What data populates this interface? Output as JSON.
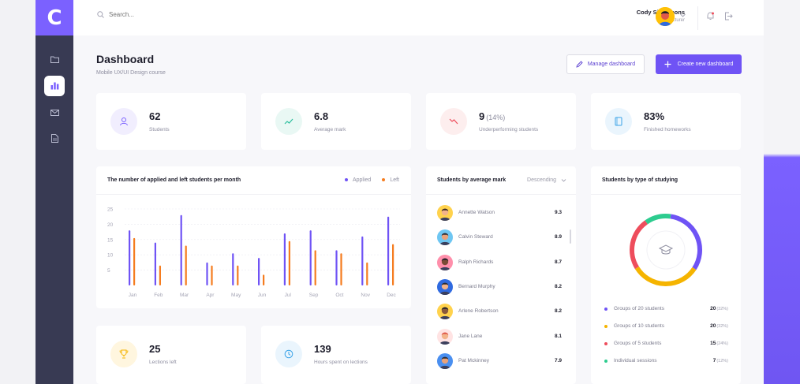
{
  "app": {
    "logo_letter": "C",
    "brand_color": "#7b61ff"
  },
  "sidebar": {
    "items": [
      {
        "icon": "folder-icon",
        "active": false
      },
      {
        "icon": "bar-chart-icon",
        "active": true
      },
      {
        "icon": "mail-icon",
        "active": false
      },
      {
        "icon": "document-icon",
        "active": false
      }
    ]
  },
  "topbar": {
    "search_placeholder": "Search...",
    "user_name": "Cody Simmmons",
    "user_role": "Lecturer"
  },
  "header": {
    "title": "Dashboard",
    "subtitle": "Mobile UX/UI Design course",
    "manage_label": "Manage dashboard",
    "create_label": "Create new dashboard"
  },
  "stats": [
    {
      "value": "62",
      "pct": "",
      "label": "Students",
      "icon": "user-icon",
      "color": "#7b61ff",
      "bg": "#f1eefe"
    },
    {
      "value": "6.8",
      "pct": "",
      "label": "Average mark",
      "icon": "trend-up-icon",
      "color": "#2dbf9e",
      "bg": "#e9f8f4"
    },
    {
      "value": "9",
      "pct": "(14%)",
      "label": "Underperforming students",
      "icon": "trend-down-icon",
      "color": "#ee4d5c",
      "bg": "#fdeeee"
    },
    {
      "value": "83%",
      "pct": "",
      "label": "Finished homeworks",
      "icon": "book-icon",
      "color": "#3aa3e8",
      "bg": "#eaf5fd"
    }
  ],
  "bottom_stats": [
    {
      "value": "25",
      "label": "Lections left",
      "icon": "trophy-icon",
      "color": "#f5b400",
      "bg": "#fff6df"
    },
    {
      "value": "139",
      "label": "Hours spent on lections",
      "icon": "clock-icon",
      "color": "#3aa3e8",
      "bg": "#eaf5fd"
    }
  ],
  "bar_card": {
    "title": "The number of applied and left students per month",
    "legend_applied": "Applied",
    "legend_left": "Left"
  },
  "chart_data": {
    "type": "bar",
    "title": "The number of applied and left students per month",
    "categories": [
      "Jan",
      "Feb",
      "Mar",
      "Apr",
      "May",
      "Jun",
      "Jul",
      "Sep",
      "Oct",
      "Nov",
      "Dec"
    ],
    "series": [
      {
        "name": "Applied",
        "color": "#6f53f5",
        "values": [
          18,
          14,
          23,
          7.5,
          10.5,
          9,
          17,
          18,
          11.5,
          16,
          22.5
        ]
      },
      {
        "name": "Left",
        "color": "#f57c1f",
        "values": [
          15.5,
          6.5,
          13,
          6.5,
          6.5,
          3.5,
          14.5,
          11.5,
          10.5,
          7.5,
          13.5
        ]
      }
    ],
    "yticks": [
      "25",
      "20",
      "15",
      "10",
      "5"
    ],
    "ylim": [
      0,
      25
    ],
    "grid": true,
    "legend": "top-right"
  },
  "avg_card": {
    "title": "Students by average mark",
    "sort_label": "Descending",
    "students": [
      {
        "name": "Annette Watson",
        "mark": "9.3",
        "bg": "#ffd24d",
        "skin": "#f2b38a",
        "hair": "#3b2a22"
      },
      {
        "name": "Calvin Steward",
        "mark": "8.9",
        "bg": "#6ec6f2",
        "skin": "#e9a27a",
        "hair": "#2b2b33"
      },
      {
        "name": "Ralph Richards",
        "mark": "8.7",
        "bg": "#ff8fab",
        "skin": "#7a4a36",
        "hair": "#1f1f28"
      },
      {
        "name": "Bernard Murphy",
        "mark": "8.2",
        "bg": "#2f6ae0",
        "skin": "#f2b38a",
        "hair": "#2b2b33"
      },
      {
        "name": "Arlene Robertson",
        "mark": "8.2",
        "bg": "#ffd24d",
        "skin": "#8a5a3c",
        "hair": "#1f1f28"
      },
      {
        "name": "Jane Lane",
        "mark": "8.1",
        "bg": "#ffe3e3",
        "skin": "#f2b38a",
        "hair": "#e0584a"
      },
      {
        "name": "Pat Mckinney",
        "mark": "7.9",
        "bg": "#4a8ff0",
        "skin": "#e9a27a",
        "hair": "#2b2b33"
      }
    ]
  },
  "type_card": {
    "title": "Students by type of studying",
    "center_icon": "graduation-cap-icon",
    "items": [
      {
        "label": "Groups of 20 students",
        "value": "20",
        "pct": "(32%)",
        "color": "#6f53f5",
        "fraction": 0.32
      },
      {
        "label": "Groups of 10 students",
        "value": "20",
        "pct": "(32%)",
        "color": "#f5b400",
        "fraction": 0.32
      },
      {
        "label": "Groups of 5 students",
        "value": "15",
        "pct": "(24%)",
        "color": "#ee4d5c",
        "fraction": 0.24
      },
      {
        "label": "Individual sessions",
        "value": "7",
        "pct": "(12%)",
        "color": "#2dcc8f",
        "fraction": 0.12
      }
    ]
  }
}
